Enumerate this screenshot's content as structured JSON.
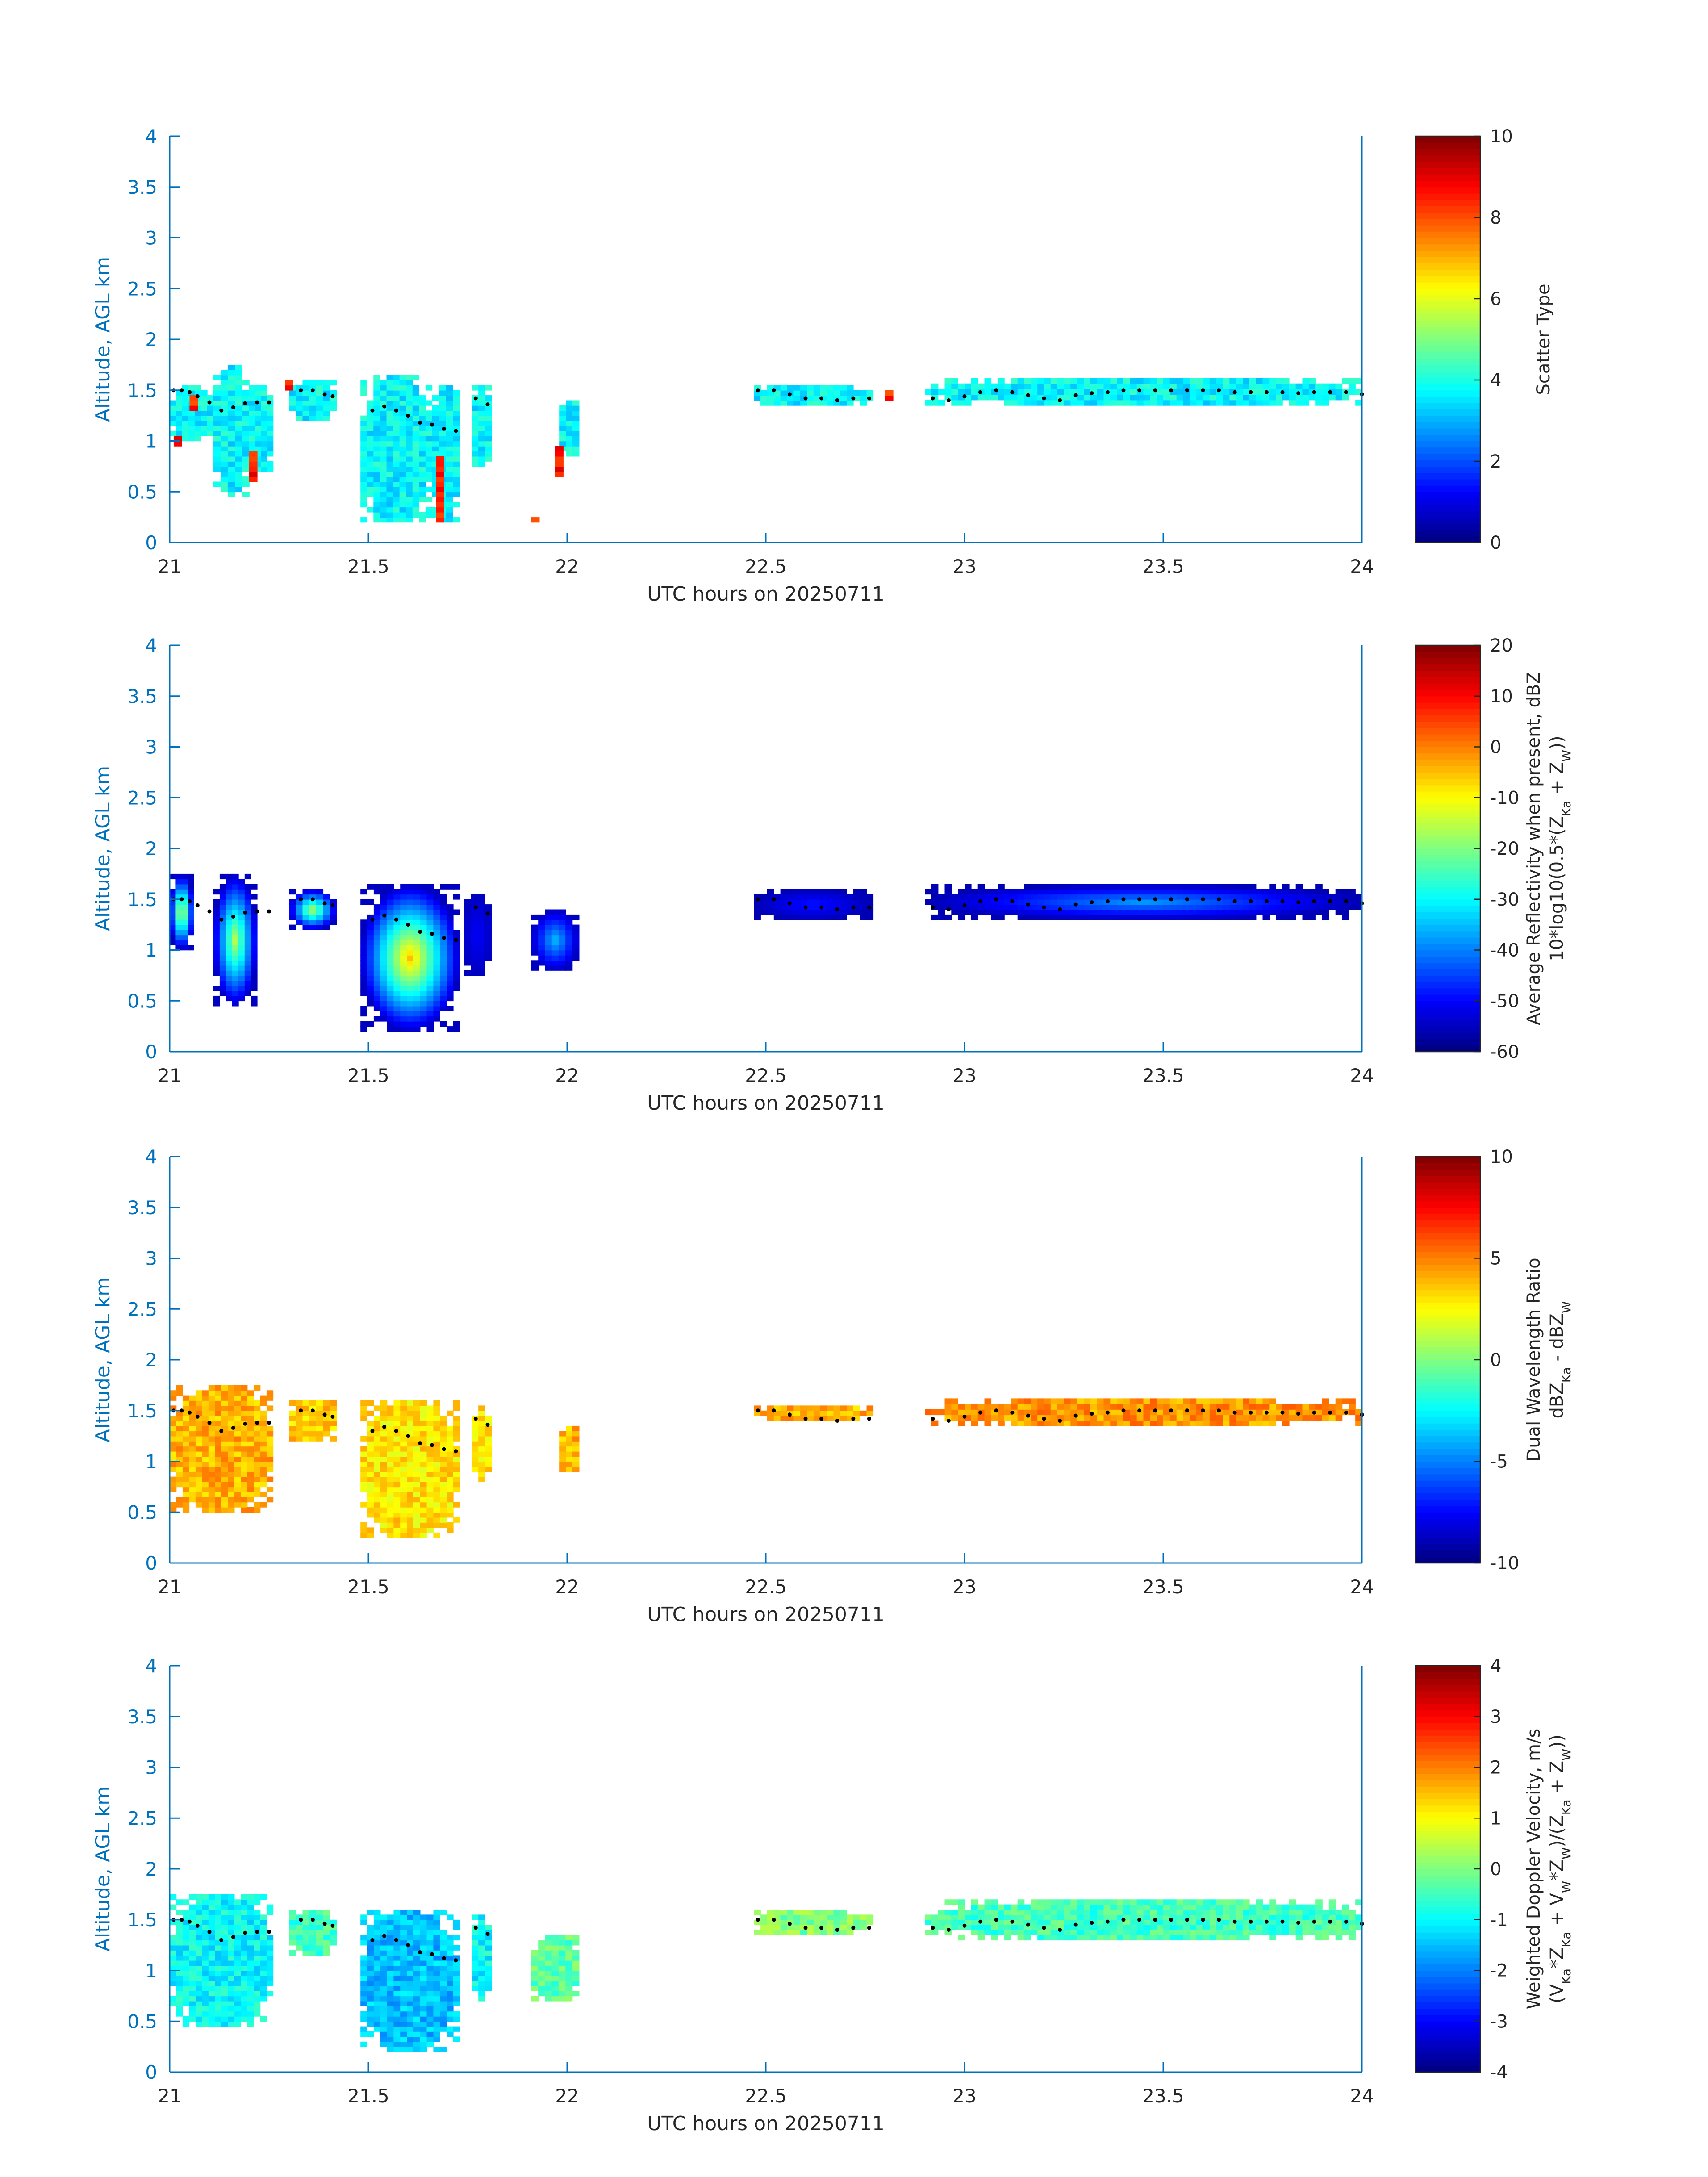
{
  "chart_data": [
    {
      "type": "heatmap",
      "xlabel": "UTC hours on 20250711",
      "ylabel": "Altitude, AGL km",
      "xlim": [
        21,
        24
      ],
      "ylim": [
        0,
        4
      ],
      "xticks": [
        "21",
        "21.5",
        "22",
        "22.5",
        "23",
        "23.5",
        "24"
      ],
      "yticks": [
        "0",
        "0.5",
        "1",
        "1.5",
        "2",
        "2.5",
        "3",
        "3.5",
        "4"
      ],
      "colorbar": {
        "label": "Scatter Type",
        "range": [
          0,
          10
        ],
        "ticks": [
          "0",
          "2",
          "4",
          "6",
          "8",
          "10"
        ]
      },
      "colormap": "jet",
      "regions": [
        {
          "x0": 21.0,
          "x1": 21.11,
          "y0": 1.0,
          "y1": 1.55,
          "value": 3.7
        },
        {
          "x0": 21.11,
          "x1": 21.2,
          "y0": 0.45,
          "y1": 1.75,
          "value": 3.7
        },
        {
          "x0": 21.2,
          "x1": 21.26,
          "y0": 0.7,
          "y1": 1.55,
          "value": 3.7
        },
        {
          "x0": 21.3,
          "x1": 21.42,
          "y0": 1.2,
          "y1": 1.6,
          "value": 3.7
        },
        {
          "x0": 21.48,
          "x1": 21.66,
          "y0": 0.2,
          "y1": 1.65,
          "value": 3.7
        },
        {
          "x0": 21.66,
          "x1": 21.73,
          "y0": 0.2,
          "y1": 1.55,
          "value": 3.7
        },
        {
          "x0": 21.76,
          "x1": 21.81,
          "y0": 0.75,
          "y1": 1.55,
          "value": 3.7
        },
        {
          "x0": 21.98,
          "x1": 22.03,
          "y0": 0.85,
          "y1": 1.4,
          "value": 3.7
        },
        {
          "x0": 22.47,
          "x1": 22.77,
          "y0": 1.35,
          "y1": 1.55,
          "value": 3.7
        },
        {
          "x0": 22.9,
          "x1": 24.0,
          "y0": 1.35,
          "y1": 1.62,
          "value": 3.7
        },
        {
          "x0": 21.01,
          "x1": 21.03,
          "y0": 0.95,
          "y1": 1.05,
          "value": 8.5
        },
        {
          "x0": 21.05,
          "x1": 21.07,
          "y0": 1.3,
          "y1": 1.45,
          "value": 8.5
        },
        {
          "x0": 21.2,
          "x1": 21.22,
          "y0": 0.6,
          "y1": 0.9,
          "value": 8.5
        },
        {
          "x0": 21.29,
          "x1": 21.31,
          "y0": 1.5,
          "y1": 1.6,
          "value": 8.5
        },
        {
          "x0": 21.67,
          "x1": 21.69,
          "y0": 0.2,
          "y1": 0.85,
          "value": 8.5
        },
        {
          "x0": 21.91,
          "x1": 21.93,
          "y0": 0.2,
          "y1": 0.25,
          "value": 8.5
        },
        {
          "x0": 21.97,
          "x1": 21.99,
          "y0": 0.65,
          "y1": 0.95,
          "value": 8.5
        },
        {
          "x0": 22.8,
          "x1": 22.82,
          "y0": 1.4,
          "y1": 1.5,
          "value": 8.5
        }
      ]
    },
    {
      "type": "heatmap",
      "xlabel": "UTC hours on 20250711",
      "ylabel": "Altitude, AGL km",
      "xlim": [
        21,
        24
      ],
      "ylim": [
        0,
        4
      ],
      "xticks": [
        "21",
        "21.5",
        "22",
        "22.5",
        "23",
        "23.5",
        "24"
      ],
      "yticks": [
        "0",
        "0.5",
        "1",
        "1.5",
        "2",
        "2.5",
        "3",
        "3.5",
        "4"
      ],
      "colorbar": {
        "label": "Average Reflectivity when present, dBZ",
        "label2": "10*log10(0.5*(Z",
        "label2_sub1": "Ka",
        "label2_mid": " + Z",
        "label2_sub2": "W",
        "label2_end": "))",
        "range": [
          -60,
          20
        ],
        "ticks": [
          "-60",
          "-50",
          "-40",
          "-30",
          "-20",
          "-10",
          "0",
          "10",
          "20"
        ]
      },
      "colormap": "jet",
      "regions": [
        {
          "x0": 21.0,
          "x1": 21.06,
          "y0": 1.0,
          "y1": 1.75,
          "value": -12,
          "edge": -55
        },
        {
          "x0": 21.11,
          "x1": 21.22,
          "y0": 0.45,
          "y1": 1.75,
          "value": -15,
          "edge": -55
        },
        {
          "x0": 21.3,
          "x1": 21.42,
          "y0": 1.2,
          "y1": 1.6,
          "value": -15,
          "edge": -55
        },
        {
          "x0": 21.48,
          "x1": 21.73,
          "y0": 0.2,
          "y1": 1.65,
          "value": -5,
          "edge": -55
        },
        {
          "x0": 21.74,
          "x1": 21.81,
          "y0": 0.75,
          "y1": 1.55,
          "value": -50,
          "edge": -55
        },
        {
          "x0": 21.91,
          "x1": 22.03,
          "y0": 0.8,
          "y1": 1.4,
          "value": -35,
          "edge": -55
        },
        {
          "x0": 22.47,
          "x1": 22.77,
          "y0": 1.3,
          "y1": 1.6,
          "value": -48,
          "edge": -56
        },
        {
          "x0": 22.9,
          "x1": 24.0,
          "y0": 1.3,
          "y1": 1.65,
          "value": -38,
          "edge": -56
        }
      ]
    },
    {
      "type": "heatmap",
      "xlabel": "UTC hours on 20250711",
      "ylabel": "Altitude, AGL km",
      "xlim": [
        21,
        24
      ],
      "ylim": [
        0,
        4
      ],
      "xticks": [
        "21",
        "21.5",
        "22",
        "22.5",
        "23",
        "23.5",
        "24"
      ],
      "yticks": [
        "0",
        "0.5",
        "1",
        "1.5",
        "2",
        "2.5",
        "3",
        "3.5",
        "4"
      ],
      "colorbar": {
        "label": "Dual Wavelength Ratio",
        "label2": "dBZ",
        "label2_sub1": "Ka",
        "label2_mid": " - dBZ",
        "label2_sub2": "W",
        "label2_end": "",
        "range": [
          -10,
          10
        ],
        "ticks": [
          "-10",
          "-5",
          "0",
          "5",
          "10"
        ]
      },
      "colormap": "jet",
      "regions": [
        {
          "x0": 21.0,
          "x1": 21.26,
          "y0": 0.5,
          "y1": 1.75,
          "value": 4.0
        },
        {
          "x0": 21.3,
          "x1": 21.42,
          "y0": 1.2,
          "y1": 1.6,
          "value": 3.5
        },
        {
          "x0": 21.48,
          "x1": 21.73,
          "y0": 0.25,
          "y1": 1.6,
          "value": 3.0
        },
        {
          "x0": 21.76,
          "x1": 21.81,
          "y0": 0.8,
          "y1": 1.55,
          "value": 3.0
        },
        {
          "x0": 21.98,
          "x1": 22.03,
          "y0": 0.9,
          "y1": 1.35,
          "value": 4.0
        },
        {
          "x0": 22.47,
          "x1": 22.77,
          "y0": 1.4,
          "y1": 1.55,
          "value": 4.0
        },
        {
          "x0": 22.9,
          "x1": 24.0,
          "y0": 1.35,
          "y1": 1.62,
          "value": 4.5
        }
      ]
    },
    {
      "type": "heatmap",
      "xlabel": "UTC hours on 20250711",
      "ylabel": "Altitude, AGL km",
      "xlim": [
        21,
        24
      ],
      "ylim": [
        0,
        4
      ],
      "xticks": [
        "21",
        "21.5",
        "22",
        "22.5",
        "23",
        "23.5",
        "24"
      ],
      "yticks": [
        "0",
        "0.5",
        "1",
        "1.5",
        "2",
        "2.5",
        "3",
        "3.5",
        "4"
      ],
      "colorbar": {
        "label": "Weighted Doppler Velocity, m/s",
        "label2": "(V",
        "label2_sub1": "Ka",
        "label2_mid": "*Z",
        "label2_sub2": "Ka",
        "label2_end": " + V",
        "label2_sub3": "W",
        "label2_end2": "*Z",
        "label2_sub4": "W",
        "label2_end3": ")/(Z",
        "label2_sub5": "Ka",
        "label2_end4": " + Z",
        "label2_sub6": "W",
        "label2_end5": "))",
        "range": [
          -4,
          4
        ],
        "ticks": [
          "-4",
          "-3",
          "-2",
          "-1",
          "0",
          "1",
          "2",
          "3",
          "4"
        ]
      },
      "colormap": "jet",
      "regions": [
        {
          "x0": 21.0,
          "x1": 21.26,
          "y0": 0.45,
          "y1": 1.75,
          "value": -1.0
        },
        {
          "x0": 21.3,
          "x1": 21.42,
          "y0": 1.15,
          "y1": 1.6,
          "value": -0.5
        },
        {
          "x0": 21.48,
          "x1": 21.73,
          "y0": 0.2,
          "y1": 1.6,
          "value": -1.5
        },
        {
          "x0": 21.76,
          "x1": 21.81,
          "y0": 0.7,
          "y1": 1.55,
          "value": -1.0
        },
        {
          "x0": 21.91,
          "x1": 22.03,
          "y0": 0.7,
          "y1": 1.35,
          "value": -0.3
        },
        {
          "x0": 22.47,
          "x1": 22.77,
          "y0": 1.35,
          "y1": 1.6,
          "value": 0.0
        },
        {
          "x0": 22.9,
          "x1": 24.0,
          "y0": 1.3,
          "y1": 1.7,
          "value": -0.5
        }
      ]
    }
  ],
  "cloud_top_line": {
    "x": [
      21.01,
      21.03,
      21.05,
      21.07,
      21.1,
      21.13,
      21.16,
      21.19,
      21.22,
      21.25,
      21.33,
      21.36,
      21.39,
      21.41,
      21.51,
      21.54,
      21.57,
      21.6,
      21.63,
      21.66,
      21.69,
      21.72,
      21.77,
      21.8,
      22.48,
      22.52,
      22.56,
      22.6,
      22.64,
      22.68,
      22.72,
      22.76,
      22.92,
      22.96,
      23.0,
      23.04,
      23.08,
      23.12,
      23.16,
      23.2,
      23.24,
      23.28,
      23.32,
      23.36,
      23.4,
      23.44,
      23.48,
      23.52,
      23.56,
      23.6,
      23.64,
      23.68,
      23.72,
      23.76,
      23.8,
      23.84,
      23.88,
      23.92,
      23.96,
      24.0
    ],
    "y": [
      1.5,
      1.5,
      1.48,
      1.44,
      1.38,
      1.3,
      1.33,
      1.37,
      1.38,
      1.38,
      1.5,
      1.5,
      1.46,
      1.44,
      1.3,
      1.34,
      1.3,
      1.25,
      1.18,
      1.16,
      1.12,
      1.1,
      1.42,
      1.36,
      1.5,
      1.5,
      1.46,
      1.42,
      1.42,
      1.4,
      1.42,
      1.42,
      1.42,
      1.4,
      1.44,
      1.48,
      1.5,
      1.48,
      1.45,
      1.42,
      1.4,
      1.45,
      1.47,
      1.48,
      1.5,
      1.5,
      1.5,
      1.5,
      1.5,
      1.5,
      1.5,
      1.48,
      1.48,
      1.48,
      1.48,
      1.47,
      1.48,
      1.48,
      1.48,
      1.46
    ]
  }
}
